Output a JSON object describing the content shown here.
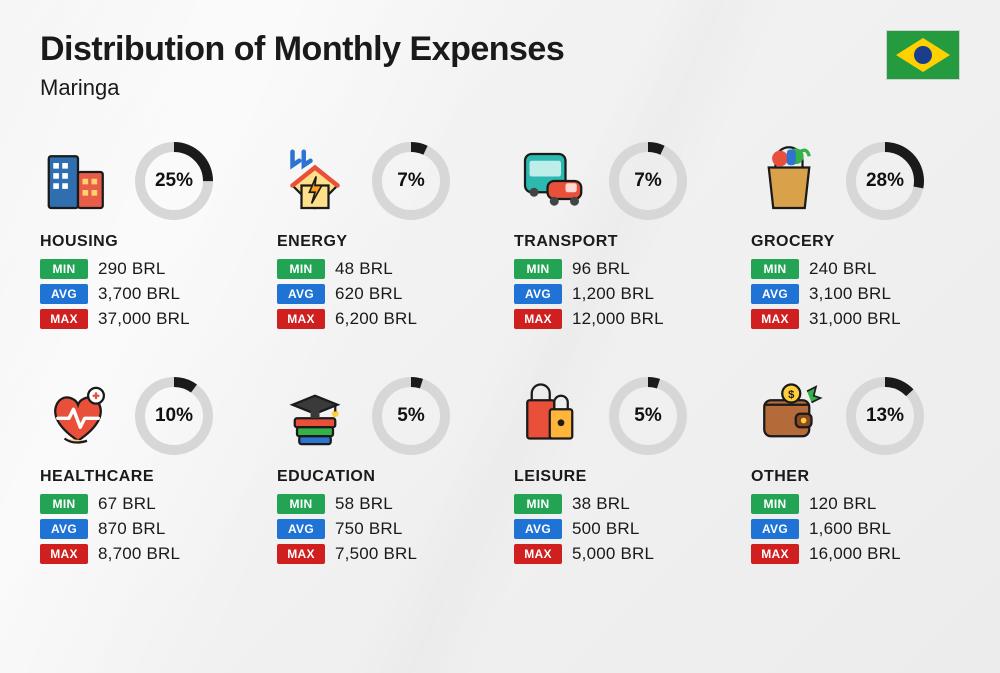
{
  "title": "Distribution of Monthly Expenses",
  "location": "Maringa",
  "currency": "BRL",
  "colors": {
    "min": "#23a455",
    "avg": "#1e73d4",
    "max": "#cf1f1f",
    "ring_bg": "#d7d7d7",
    "ring_fg": "#1a1a1a",
    "text": "#1a1a1a",
    "flag_green": "#249b3e",
    "flag_yellow": "#ffd100",
    "flag_blue": "#1b3e8c"
  },
  "labels": {
    "min": "MIN",
    "avg": "AVG",
    "max": "MAX"
  },
  "donut": {
    "radius": 34,
    "stroke_width": 10
  },
  "categories": [
    {
      "name": "HOUSING",
      "icon": "housing",
      "percent": 25,
      "min": "290",
      "avg": "3,700",
      "max": "37,000"
    },
    {
      "name": "ENERGY",
      "icon": "energy",
      "percent": 7,
      "min": "48",
      "avg": "620",
      "max": "6,200"
    },
    {
      "name": "TRANSPORT",
      "icon": "transport",
      "percent": 7,
      "min": "96",
      "avg": "1,200",
      "max": "12,000"
    },
    {
      "name": "GROCERY",
      "icon": "grocery",
      "percent": 28,
      "min": "240",
      "avg": "3,100",
      "max": "31,000"
    },
    {
      "name": "HEALTHCARE",
      "icon": "healthcare",
      "percent": 10,
      "min": "67",
      "avg": "870",
      "max": "8,700"
    },
    {
      "name": "EDUCATION",
      "icon": "education",
      "percent": 5,
      "min": "58",
      "avg": "750",
      "max": "7,500"
    },
    {
      "name": "LEISURE",
      "icon": "leisure",
      "percent": 5,
      "min": "38",
      "avg": "500",
      "max": "5,000"
    },
    {
      "name": "OTHER",
      "icon": "other",
      "percent": 13,
      "min": "120",
      "avg": "1,600",
      "max": "16,000"
    }
  ]
}
